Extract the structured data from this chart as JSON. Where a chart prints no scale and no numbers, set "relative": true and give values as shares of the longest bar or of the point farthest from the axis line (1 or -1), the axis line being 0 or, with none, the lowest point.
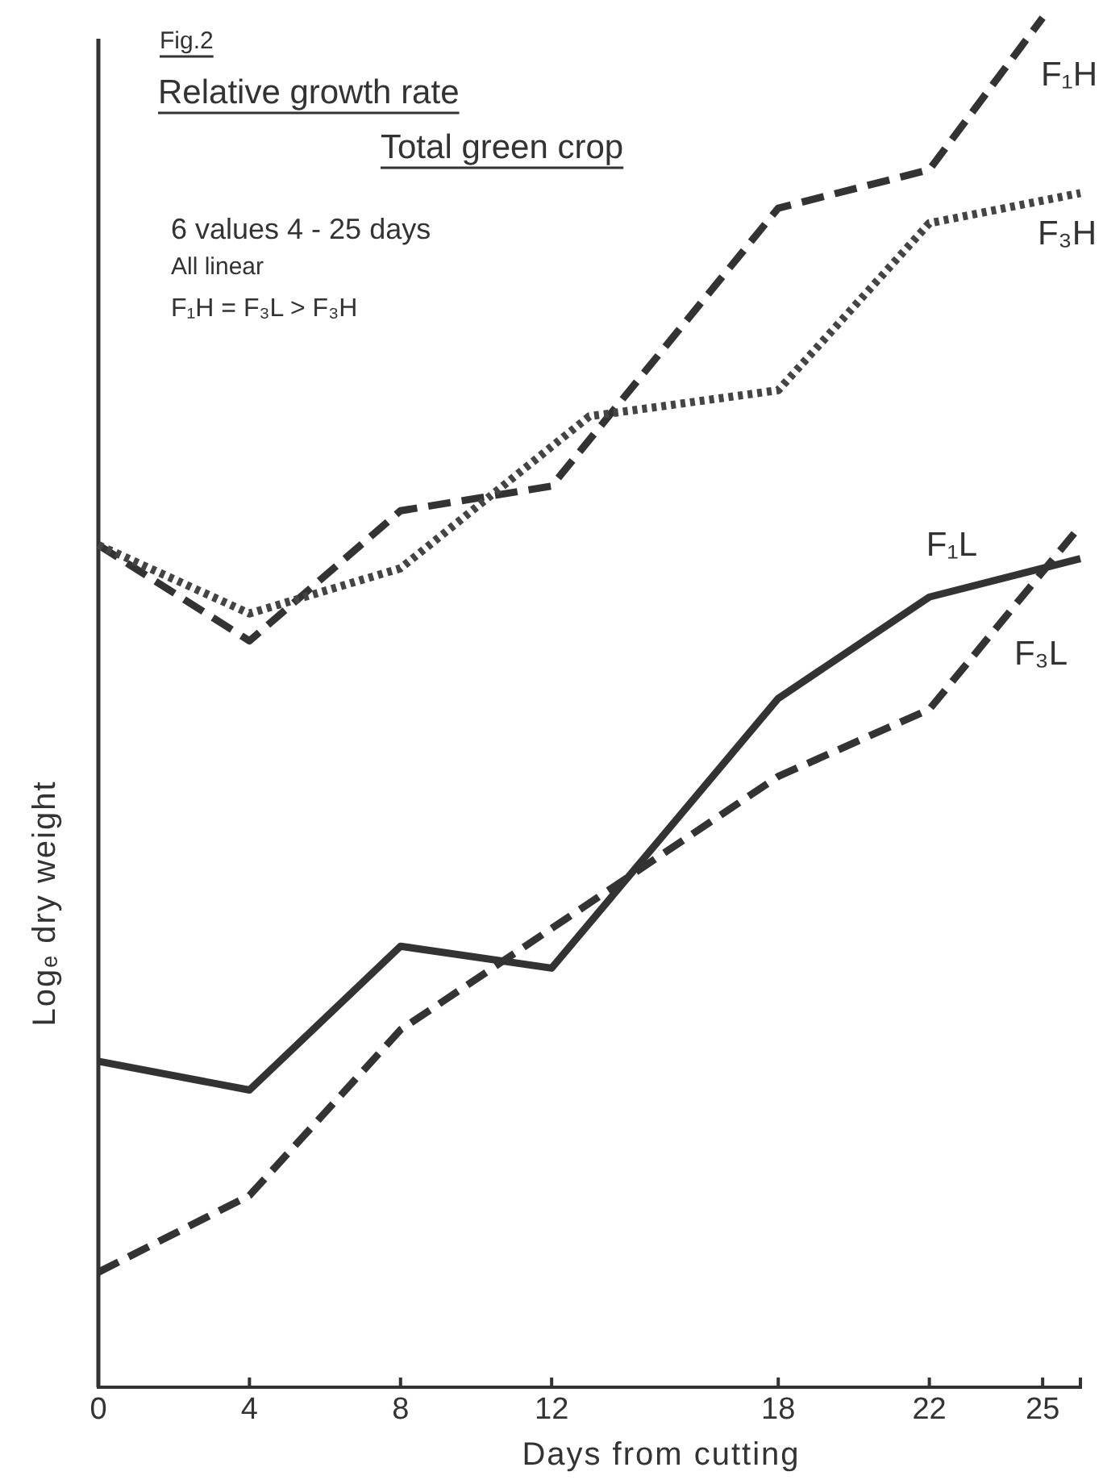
{
  "chart_data": {
    "type": "line",
    "title": "Relative growth rate",
    "subtitle": "Total green crop",
    "xlabel": "Days from cutting",
    "ylabel": "Logₑ dry weight",
    "annotations": [
      "Fig.2",
      "6 values   4 - 25 days",
      "All linear",
      "F₁H = F₃L > F₃H"
    ],
    "relative": true,
    "xlim": [
      0,
      26
    ],
    "xticks": [
      0,
      4,
      8,
      12,
      18,
      22,
      25
    ],
    "grid": false,
    "marker": "none",
    "series": [
      {
        "name": "F₁H",
        "color": "#333333",
        "line_style": "dashed",
        "x": [
          0,
          4,
          8,
          12,
          18,
          22,
          25
        ],
        "values": [
          0.615,
          0.545,
          0.64,
          0.658,
          0.861,
          0.889,
          1
        ]
      },
      {
        "name": "F₃H",
        "color": "#444444",
        "line_style": "dotted",
        "x": [
          0,
          4,
          8,
          13,
          18,
          22,
          26
        ],
        "values": [
          0.615,
          0.565,
          0.598,
          0.709,
          0.728,
          0.85,
          0.872
        ]
      },
      {
        "name": "F₁L",
        "color": "#333333",
        "line_style": "solid",
        "x": [
          0,
          4,
          8,
          12,
          18,
          22,
          26
        ],
        "values": [
          0.238,
          0.217,
          0.322,
          0.306,
          0.503,
          0.577,
          0.605
        ]
      },
      {
        "name": "F₃L",
        "color": "#333333",
        "line_style": "dashed",
        "x": [
          0,
          4,
          8,
          18,
          22,
          26
        ],
        "values": [
          0.084,
          0.14,
          0.261,
          0.446,
          0.495,
          0.629
        ]
      }
    ]
  }
}
